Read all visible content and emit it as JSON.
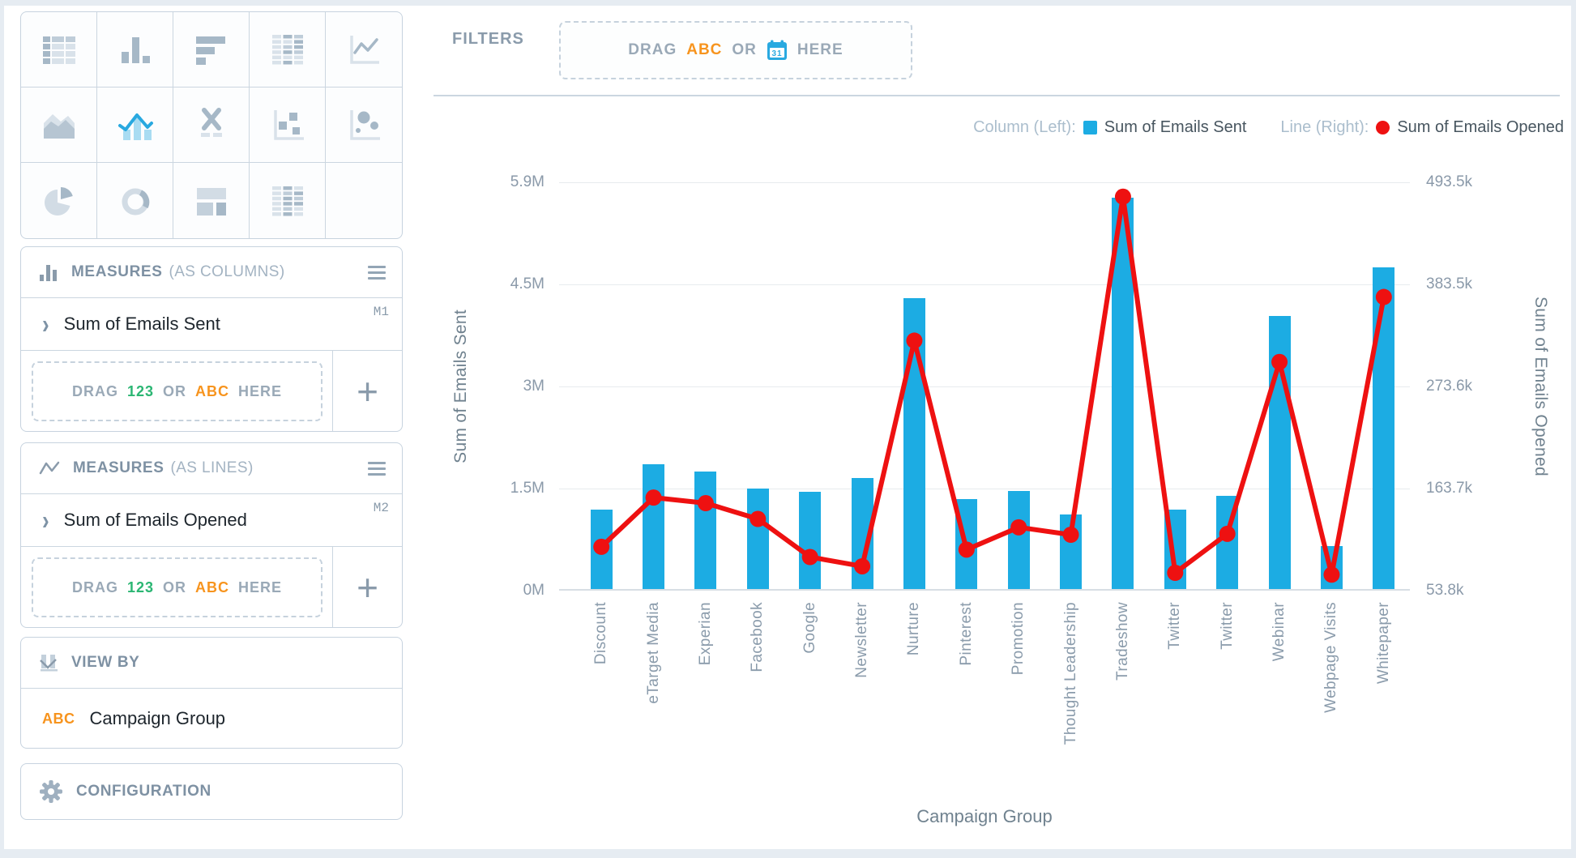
{
  "sidebar": {
    "chart_picker": {
      "types": [
        "data-table",
        "column-chart",
        "horizontal-bar-chart",
        "pivot-table",
        "line-chart",
        "area-chart",
        "bar-line-combo",
        "x-y-axis",
        "scatter-plot",
        "bubble-chart",
        "pie-chart",
        "donut-chart",
        "treemap",
        "heat-table",
        ""
      ],
      "selected": "bar-line-combo"
    },
    "measures_columns": {
      "title": "MEASURES",
      "subtitle": "(AS COLUMNS)",
      "measure": {
        "chevron": "›",
        "name": "Sum of Emails Sent",
        "badge": "M1"
      },
      "drop_zone": {
        "drag": "DRAG",
        "num": "123",
        "or": "OR",
        "abc": "ABC",
        "here": "HERE"
      },
      "add_button": "+"
    },
    "measures_lines": {
      "title": "MEASURES",
      "subtitle": "(AS LINES)",
      "measure": {
        "chevron": "›",
        "name": "Sum of Emails Opened",
        "badge": "M2"
      },
      "drop_zone": {
        "drag": "DRAG",
        "num": "123",
        "or": "OR",
        "abc": "ABC",
        "here": "HERE"
      },
      "add_button": "+"
    },
    "view_by": {
      "title": "VIEW BY",
      "field_type": "ABC",
      "field_name": "Campaign Group"
    },
    "configuration": {
      "title": "CONFIGURATION"
    }
  },
  "filters": {
    "label": "FILTERS",
    "drop_zone": {
      "drag": "DRAG",
      "abc": "ABC",
      "or": "OR",
      "calendar_day": "31",
      "here": "HERE"
    }
  },
  "legend": {
    "column_label": "Column (Left):",
    "column_series": "Sum of Emails Sent",
    "line_label": "Line (Right):",
    "line_series": "Sum of Emails Opened"
  },
  "chart_data": {
    "type": "combo-bar-line",
    "categories": [
      "Discount",
      "eTarget Media",
      "Experian",
      "Facebook",
      "Google",
      "Newsletter",
      "Nurture",
      "Pinterest",
      "Promotion",
      "Thought Leadership",
      "Tradeshow",
      "Twitter",
      "Twitter",
      "Webinar",
      "Webpage Visits",
      "Whitepaper"
    ],
    "series": [
      {
        "name": "Sum of Emails Sent",
        "type": "bar",
        "axis": "left",
        "color": "#1CACE3",
        "values": [
          1150000,
          1800000,
          1700000,
          1450000,
          1400000,
          1600000,
          4200000,
          1300000,
          1420000,
          1080000,
          5650000,
          1150000,
          1350000,
          3950000,
          620000,
          4650000
        ]
      },
      {
        "name": "Sum of Emails Opened",
        "type": "line",
        "axis": "right",
        "color": "#EE1111",
        "values": [
          101000,
          154000,
          148000,
          131000,
          90000,
          80000,
          323000,
          98000,
          122000,
          114000,
          478000,
          73000,
          115000,
          300000,
          71000,
          370000
        ]
      }
    ],
    "left_axis": {
      "title": "Sum of Emails Sent",
      "ticks": [
        "0M",
        "1.5M",
        "3M",
        "4.5M",
        "5.9M"
      ],
      "min": 0,
      "max": 5900000
    },
    "right_axis": {
      "title": "Sum of Emails Opened",
      "ticks": [
        "53.8k",
        "163.7k",
        "273.6k",
        "383.5k",
        "493.5k"
      ],
      "min": 53800,
      "max": 493500
    },
    "xlabel": "Campaign Group",
    "grid": true,
    "legend_position": "top-right"
  },
  "colors": {
    "bar_blue": "#1CACE3",
    "line_red": "#EE1111",
    "selected_icon_blue": "#29A9E0",
    "selected_icon_light": "#A9DCF2",
    "orange": "#F7941E",
    "green": "#2BB673",
    "icon_dark": "#A6B8C7",
    "icon_light": "#D9E2EA"
  }
}
